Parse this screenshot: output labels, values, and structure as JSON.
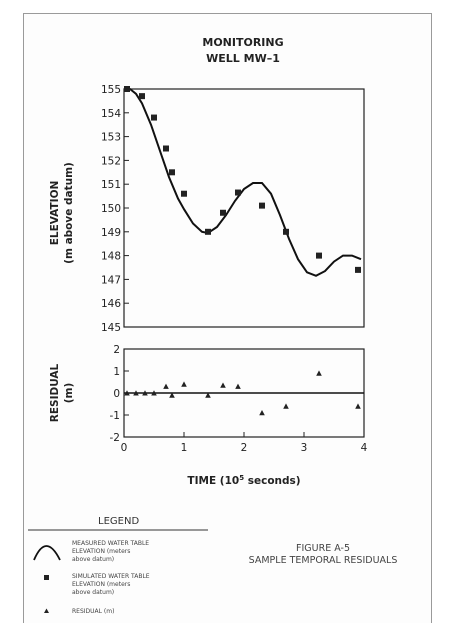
{
  "chart_data": [
    {
      "type": "line",
      "title_lines": [
        "MONITORING",
        "WELL MW–1"
      ],
      "ylabel_lines": [
        "ELEVATION",
        "(m above datum)"
      ],
      "ylim": [
        145,
        155
      ],
      "xlim": [
        0,
        4
      ],
      "yticks": [
        "145",
        "146",
        "147",
        "148",
        "149",
        "150",
        "151",
        "152",
        "153",
        "154",
        "155"
      ],
      "series": [
        {
          "name": "MEASURED WATER TABLE ELEVATION (meters above datum)",
          "kind": "line",
          "x": [
            0,
            0.1,
            0.2,
            0.3,
            0.45,
            0.6,
            0.75,
            0.9,
            1.0,
            1.15,
            1.3,
            1.4,
            1.55,
            1.7,
            1.85,
            2.0,
            2.15,
            2.3,
            2.45,
            2.6,
            2.75,
            2.9,
            3.05,
            3.2,
            3.35,
            3.5,
            3.65,
            3.8,
            3.95
          ],
          "y": [
            155.05,
            155.0,
            154.8,
            154.4,
            153.5,
            152.4,
            151.3,
            150.4,
            149.95,
            149.35,
            149.0,
            148.95,
            149.2,
            149.7,
            150.3,
            150.8,
            151.05,
            151.05,
            150.6,
            149.7,
            148.7,
            147.85,
            147.3,
            147.15,
            147.35,
            147.75,
            148.0,
            148.0,
            147.85
          ]
        },
        {
          "name": "SIMULATED WATER TABLE ELEVATION (meters above datum)",
          "kind": "marker",
          "x": [
            0.05,
            0.3,
            0.5,
            0.7,
            0.8,
            1.0,
            1.4,
            1.65,
            1.9,
            2.3,
            2.7,
            3.25,
            3.9
          ],
          "y": [
            155.0,
            154.7,
            153.8,
            152.5,
            151.5,
            150.6,
            149.0,
            149.8,
            150.65,
            150.1,
            149.0,
            148.0,
            147.4
          ]
        }
      ]
    },
    {
      "type": "scatter",
      "ylabel_lines": [
        "RESIDUAL",
        "(m)"
      ],
      "xlabel_prefix": "TIME (10",
      "xlabel_sup": "5",
      "xlabel_suffix": " seconds)",
      "ylim": [
        -2,
        2
      ],
      "xlim": [
        0,
        4
      ],
      "yticks": [
        "-2",
        "-1",
        "0",
        "1",
        "2"
      ],
      "xticks": [
        "0",
        "1",
        "2",
        "3",
        "4"
      ],
      "series": [
        {
          "name": "RESIDUAL (m)",
          "kind": "marker",
          "x": [
            0.05,
            0.2,
            0.35,
            0.5,
            0.7,
            0.8,
            1.0,
            1.4,
            1.65,
            1.9,
            2.3,
            2.7,
            3.25,
            3.9
          ],
          "y": [
            0.0,
            0.0,
            0.0,
            0.0,
            0.3,
            -0.1,
            0.4,
            -0.1,
            0.35,
            0.3,
            -0.9,
            -0.6,
            0.9,
            -0.6
          ]
        }
      ]
    }
  ],
  "legend": {
    "title": "LEGEND",
    "items": [
      {
        "symbol": "curve-icon",
        "lines": [
          "MEASURED WATER TABLE",
          "ELEVATION (meters",
          "above datum)"
        ]
      },
      {
        "symbol": "square-marker-icon",
        "lines": [
          "SIMULATED WATER TABLE",
          "ELEVATION (meters",
          "above datum)"
        ]
      },
      {
        "symbol": "triangle-marker-icon",
        "lines": [
          "RESIDUAL (m)"
        ]
      }
    ]
  },
  "figure": {
    "caption_lines": [
      "FIGURE A-5",
      "SAMPLE TEMPORAL RESIDUALS"
    ]
  }
}
